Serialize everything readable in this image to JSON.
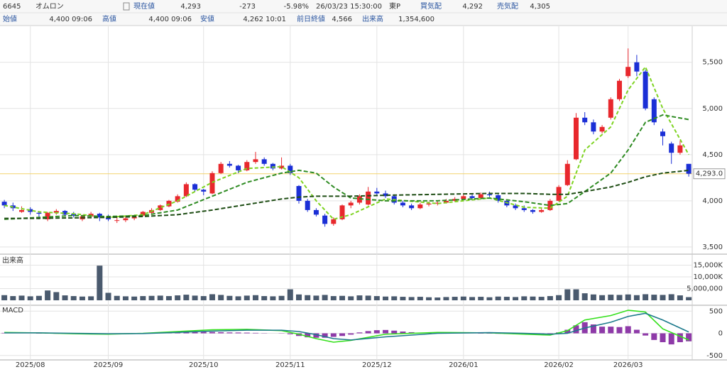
{
  "header": {
    "code": "6645",
    "name": "オムロン",
    "row1": [
      {
        "label": "現在値",
        "value": "4,293"
      },
      {
        "value": "-273"
      },
      {
        "value": "-5.98%"
      },
      {
        "value": "26/03/23 15:30:00"
      },
      {
        "value": "東P"
      },
      {
        "label": "買気配",
        "value": "4,292"
      },
      {
        "label": "売気配",
        "value": "4,305"
      }
    ],
    "row2": [
      {
        "label": "始値",
        "value": "4,400 09:06"
      },
      {
        "label": "高値",
        "value": "4,400 09:06"
      },
      {
        "label": "安値",
        "value": "4,262 10:01"
      },
      {
        "label": "前日終値",
        "value": "4,566"
      },
      {
        "label": "出来高",
        "value": "1,354,600"
      }
    ]
  },
  "chart_data": [
    {
      "type": "candlestick",
      "up_color": "#e8282d",
      "down_color": "#1b2fd6",
      "xlim": [
        -0.5,
        79.4
      ],
      "xticks": [
        {
          "value": 3,
          "label": "2025/08"
        },
        {
          "value": 12,
          "label": "2025/09"
        },
        {
          "value": 23,
          "label": "2025/10"
        },
        {
          "value": 33,
          "label": "2025/11"
        },
        {
          "value": 43,
          "label": "2025/12"
        },
        {
          "value": 53,
          "label": "2026/01"
        },
        {
          "value": 64,
          "label": "2026/02"
        },
        {
          "value": 72,
          "label": "2026/03"
        }
      ],
      "ylim": [
        3430,
        5890
      ],
      "yticks": [
        {
          "value": 3500,
          "label": "3,500"
        },
        {
          "value": 4000,
          "label": "4,000"
        },
        {
          "value": 4500,
          "label": "4,500"
        },
        {
          "value": 5000,
          "label": "5,000"
        },
        {
          "value": 5500,
          "label": "5,500"
        }
      ],
      "grid": true,
      "reference": {
        "value": 4293,
        "value_label": "4,293.0",
        "color": "#f3d36b"
      },
      "candles": [
        [
          3990,
          4010,
          3920,
          3950
        ],
        [
          3950,
          3980,
          3890,
          3920
        ],
        [
          3880,
          3940,
          3870,
          3900
        ],
        [
          3910,
          3930,
          3850,
          3880
        ],
        [
          3870,
          3890,
          3800,
          3860
        ],
        [
          3800,
          3880,
          3780,
          3870
        ],
        [
          3870,
          3910,
          3850,
          3890
        ],
        [
          3890,
          3900,
          3830,
          3850
        ],
        [
          3860,
          3880,
          3820,
          3840
        ],
        [
          3800,
          3850,
          3780,
          3830
        ],
        [
          3830,
          3880,
          3810,
          3860
        ],
        [
          3860,
          3870,
          3780,
          3820
        ],
        [
          3830,
          3850,
          3780,
          3800
        ],
        [
          3790,
          3820,
          3760,
          3790
        ],
        [
          3790,
          3840,
          3770,
          3810
        ],
        [
          3810,
          3850,
          3790,
          3830
        ],
        [
          3840,
          3890,
          3830,
          3880
        ],
        [
          3870,
          3920,
          3860,
          3900
        ],
        [
          3900,
          3960,
          3890,
          3950
        ],
        [
          3940,
          4010,
          3930,
          4000
        ],
        [
          3990,
          4070,
          3980,
          4050
        ],
        [
          4050,
          4200,
          4040,
          4180
        ],
        [
          4180,
          4190,
          4100,
          4120
        ],
        [
          4120,
          4130,
          4060,
          4100
        ],
        [
          4080,
          4320,
          4070,
          4300
        ],
        [
          4300,
          4420,
          4290,
          4400
        ],
        [
          4400,
          4430,
          4360,
          4380
        ],
        [
          4380,
          4390,
          4300,
          4330
        ],
        [
          4330,
          4440,
          4320,
          4420
        ],
        [
          4420,
          4530,
          4400,
          4450
        ],
        [
          4450,
          4470,
          4380,
          4400
        ],
        [
          4400,
          4410,
          4330,
          4350
        ],
        [
          4350,
          4470,
          4340,
          4380
        ],
        [
          4380,
          4400,
          4280,
          4300
        ],
        [
          4160,
          4170,
          3970,
          4000
        ],
        [
          4000,
          4020,
          3880,
          3900
        ],
        [
          3900,
          3920,
          3830,
          3850
        ],
        [
          3840,
          3860,
          3720,
          3750
        ],
        [
          3750,
          3820,
          3730,
          3800
        ],
        [
          3800,
          3960,
          3790,
          3950
        ],
        [
          3950,
          4000,
          3920,
          3980
        ],
        [
          3980,
          4070,
          3960,
          4050
        ],
        [
          3960,
          4150,
          3950,
          4100
        ],
        [
          4100,
          4140,
          4060,
          4080
        ],
        [
          4080,
          4110,
          4030,
          4050
        ],
        [
          4050,
          4070,
          3960,
          3980
        ],
        [
          3980,
          4000,
          3930,
          3950
        ],
        [
          3950,
          3970,
          3900,
          3920
        ],
        [
          3920,
          3980,
          3910,
          3960
        ],
        [
          3960,
          3990,
          3940,
          3970
        ],
        [
          3970,
          4000,
          3950,
          3980
        ],
        [
          3980,
          4020,
          3970,
          4000
        ],
        [
          4000,
          4040,
          3990,
          4020
        ],
        [
          4020,
          4080,
          4010,
          4050
        ],
        [
          4050,
          4070,
          4010,
          4030
        ],
        [
          4030,
          4090,
          4020,
          4070
        ],
        [
          4070,
          4100,
          4040,
          4060
        ],
        [
          4060,
          4070,
          3980,
          4000
        ],
        [
          4000,
          4010,
          3930,
          3950
        ],
        [
          3950,
          3970,
          3900,
          3920
        ],
        [
          3920,
          3950,
          3880,
          3900
        ],
        [
          3900,
          3910,
          3860,
          3880
        ],
        [
          3880,
          3920,
          3870,
          3900
        ],
        [
          3900,
          4020,
          3890,
          4000
        ],
        [
          4000,
          4170,
          3990,
          4150
        ],
        [
          4170,
          4440,
          4160,
          4400
        ],
        [
          4450,
          4950,
          4440,
          4900
        ],
        [
          4900,
          4960,
          4820,
          4850
        ],
        [
          4850,
          4880,
          4720,
          4750
        ],
        [
          4750,
          4820,
          4730,
          4800
        ],
        [
          4900,
          5120,
          4880,
          5100
        ],
        [
          5100,
          5320,
          5080,
          5300
        ],
        [
          5350,
          5650,
          5330,
          5450
        ],
        [
          5500,
          5580,
          5350,
          5400
        ],
        [
          5400,
          5420,
          4980,
          5000
        ],
        [
          5100,
          5120,
          4820,
          4850
        ],
        [
          4750,
          4780,
          4600,
          4700
        ],
        [
          4620,
          4640,
          4400,
          4520
        ],
        [
          4520,
          4650,
          4500,
          4600
        ],
        [
          4400,
          4400,
          4262,
          4293
        ]
      ],
      "series": [
        {
          "color": "#7ed321",
          "dash": "5,3",
          "x": [
            0,
            4,
            8,
            12,
            16,
            20,
            24,
            28,
            32,
            34,
            36,
            38,
            40,
            44,
            50,
            56,
            60,
            63,
            65,
            67,
            70,
            72,
            74,
            76,
            79
          ],
          "values": [
            3950,
            3880,
            3860,
            3820,
            3850,
            4000,
            4200,
            4350,
            4370,
            4250,
            4000,
            3800,
            3850,
            4020,
            3970,
            4030,
            3930,
            3920,
            4050,
            4550,
            4800,
            5200,
            5450,
            5000,
            4500
          ]
        },
        {
          "color": "#2e8b22",
          "dash": "6,3",
          "x": [
            0,
            4,
            8,
            12,
            16,
            20,
            24,
            28,
            32,
            34,
            36,
            38,
            40,
            44,
            50,
            56,
            60,
            63,
            65,
            67,
            70,
            72,
            74,
            76,
            79
          ],
          "values": [
            3800,
            3820,
            3840,
            3830,
            3840,
            3900,
            4050,
            4200,
            4300,
            4330,
            4300,
            4150,
            4030,
            4000,
            4000,
            4030,
            3990,
            3950,
            3970,
            4100,
            4300,
            4550,
            4850,
            4930,
            4880
          ]
        },
        {
          "color": "#1e4d14",
          "dash": "6,3",
          "x": [
            0,
            4,
            8,
            12,
            16,
            20,
            24,
            28,
            32,
            34,
            36,
            38,
            40,
            44,
            50,
            56,
            60,
            63,
            65,
            67,
            70,
            72,
            74,
            76,
            79
          ],
          "values": [
            3810,
            3810,
            3815,
            3820,
            3830,
            3850,
            3900,
            3960,
            4020,
            4040,
            4050,
            4050,
            4050,
            4060,
            4070,
            4080,
            4080,
            4070,
            4070,
            4100,
            4150,
            4200,
            4260,
            4300,
            4330
          ]
        }
      ]
    },
    {
      "type": "bar",
      "title": "出来高",
      "color": "#4a5a6e",
      "ylim": [
        0,
        18500000
      ],
      "yticks": [
        {
          "value": 5000000,
          "label": "5,000,000"
        },
        {
          "value": 10000000,
          "label": "10,000K"
        },
        {
          "value": 15000000,
          "label": "15,000K"
        }
      ],
      "values": [
        2200000,
        1800000,
        2000000,
        1700000,
        1900000,
        4200000,
        3500000,
        2100000,
        1800000,
        1600000,
        1700000,
        14800000,
        3200000,
        1900000,
        1700000,
        1600000,
        1800000,
        1900000,
        2000000,
        1800000,
        2100000,
        2400000,
        2000000,
        1800000,
        2600000,
        2300000,
        1900000,
        1700000,
        2000000,
        2200000,
        1800000,
        1700000,
        1900000,
        4700000,
        2500000,
        2200000,
        2000000,
        2300000,
        1800000,
        1900000,
        1700000,
        2100000,
        2000000,
        1800000,
        1600000,
        1700000,
        1500000,
        1400000,
        1500000,
        1300000,
        1200000,
        1400000,
        1500000,
        1600000,
        1400000,
        1500000,
        1300000,
        1600000,
        1500000,
        1400000,
        1700000,
        1600000,
        1500000,
        1800000,
        2200000,
        4700000,
        4700000,
        3000000,
        2500000,
        2200000,
        2400000,
        2300000,
        2500000,
        2200000,
        2600000,
        2400000,
        2300000,
        2600000,
        2100000,
        1354600
      ]
    },
    {
      "type": "macd",
      "title": "MACD",
      "color": "#8e3aa8",
      "ylim": [
        -600,
        600
      ],
      "yticks": [
        -500,
        0,
        500
      ],
      "values": [
        10,
        8,
        5,
        0,
        -5,
        -8,
        -10,
        -10,
        -8,
        -5,
        -3,
        -5,
        -8,
        -5,
        0,
        5,
        8,
        10,
        12,
        15,
        18,
        25,
        28,
        30,
        30,
        25,
        20,
        18,
        15,
        10,
        5,
        0,
        -5,
        -20,
        -60,
        -90,
        -100,
        -100,
        -80,
        -60,
        -30,
        20,
        50,
        70,
        75,
        60,
        40,
        25,
        15,
        10,
        5,
        5,
        5,
        5,
        0,
        -5,
        -5,
        -10,
        -15,
        -20,
        -25,
        -25,
        -20,
        -10,
        20,
        80,
        180,
        250,
        200,
        150,
        150,
        140,
        160,
        80,
        -50,
        -150,
        -200,
        -250,
        -200,
        -180
      ],
      "series": [
        {
          "color": "#33e01a",
          "x": [
            0,
            4,
            8,
            12,
            16,
            20,
            24,
            28,
            32,
            34,
            36,
            38,
            40,
            44,
            50,
            56,
            60,
            63,
            65,
            67,
            70,
            72,
            74,
            76,
            79
          ],
          "values": [
            20,
            10,
            -10,
            -20,
            0,
            40,
            80,
            90,
            60,
            -20,
            -120,
            -200,
            -160,
            -20,
            20,
            10,
            -20,
            -40,
            60,
            300,
            400,
            520,
            480,
            100,
            -150
          ]
        },
        {
          "color": "#1d7a8c",
          "x": [
            0,
            4,
            8,
            12,
            16,
            20,
            24,
            28,
            32,
            34,
            36,
            38,
            40,
            44,
            50,
            56,
            60,
            63,
            65,
            67,
            70,
            72,
            74,
            76,
            79
          ],
          "values": [
            10,
            10,
            0,
            -10,
            -5,
            20,
            50,
            70,
            70,
            40,
            -30,
            -120,
            -150,
            -80,
            0,
            15,
            0,
            -20,
            0,
            120,
            250,
            380,
            450,
            300,
            30
          ]
        }
      ]
    }
  ]
}
